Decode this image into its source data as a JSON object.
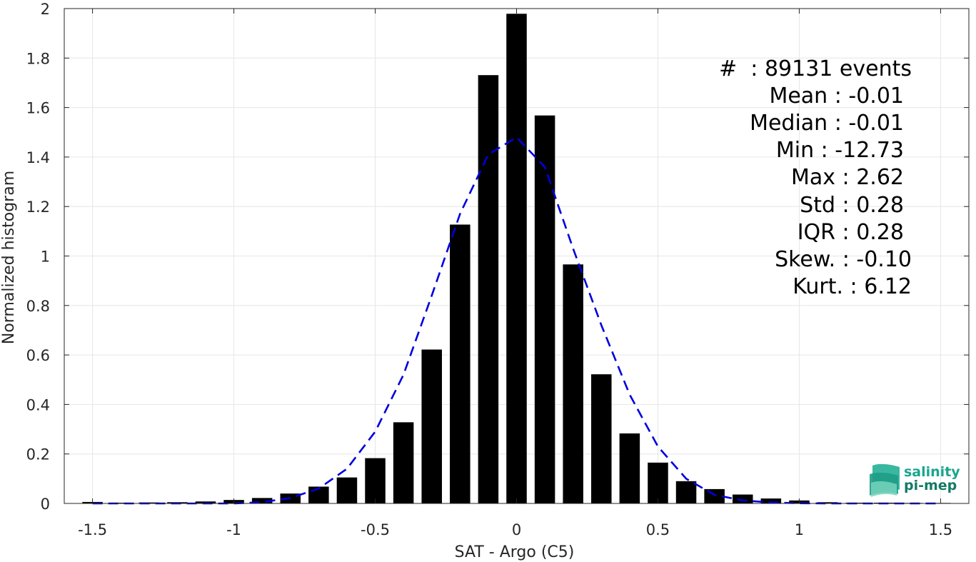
{
  "chart_data": {
    "type": "bar",
    "xlabel": "SAT - Argo (C5)",
    "ylabel": "Normalized histogram",
    "xlim": [
      -1.6,
      1.6
    ],
    "ylim": [
      0,
      2
    ],
    "grid": true,
    "xticks": [
      -1.5,
      -1,
      -0.5,
      0,
      0.5,
      1,
      1.5
    ],
    "xtick_labels": [
      "-1.5",
      "-1",
      "-0.5",
      "0",
      "0.5",
      "1",
      "1.5"
    ],
    "yticks": [
      0,
      0.2,
      0.4,
      0.6,
      0.8,
      1,
      1.2,
      1.4,
      1.6,
      1.8,
      2
    ],
    "ytick_labels": [
      "0",
      "0.2",
      "0.4",
      "0.6",
      "0.8",
      "1",
      "1.2",
      "1.4",
      "1.6",
      "1.8",
      "2"
    ],
    "bin_centers": [
      -1.5,
      -1.4,
      -1.3,
      -1.2,
      -1.1,
      -1.0,
      -0.9,
      -0.8,
      -0.7,
      -0.6,
      -0.5,
      -0.4,
      -0.3,
      -0.2,
      -0.1,
      0.0,
      0.1,
      0.2,
      0.3,
      0.4,
      0.5,
      0.6,
      0.7,
      0.8,
      0.9,
      1.0,
      1.1,
      1.2,
      1.3,
      1.4,
      1.5
    ],
    "values": [
      0.006,
      0.003,
      0.004,
      0.005,
      0.008,
      0.014,
      0.022,
      0.04,
      0.068,
      0.105,
      0.183,
      0.328,
      0.622,
      1.127,
      1.731,
      1.979,
      1.568,
      0.966,
      0.522,
      0.283,
      0.165,
      0.09,
      0.058,
      0.036,
      0.02,
      0.012,
      0.005,
      0.003,
      0.003,
      0.002,
      0.002
    ],
    "bar_color": "#000000",
    "fit_curve": {
      "style": "dashed",
      "color": "#0000dd",
      "x": [
        -1.5,
        -1.4,
        -1.3,
        -1.2,
        -1.1,
        -1.0,
        -0.9,
        -0.8,
        -0.7,
        -0.6,
        -0.5,
        -0.4,
        -0.3,
        -0.2,
        -0.1,
        0.0,
        0.1,
        0.2,
        0.3,
        0.4,
        0.5,
        0.6,
        0.7,
        0.8,
        0.9,
        1.0,
        1.1,
        1.2,
        1.3,
        1.4,
        1.5
      ],
      "y": [
        0.0,
        0.0,
        0.0,
        0.0,
        0.0,
        0.0,
        0.005,
        0.022,
        0.06,
        0.14,
        0.29,
        0.52,
        0.84,
        1.17,
        1.41,
        1.48,
        1.36,
        1.03,
        0.72,
        0.44,
        0.23,
        0.1,
        0.035,
        0.012,
        0.004,
        0.001,
        0.0,
        0.0,
        0.0,
        0.0,
        0.0
      ]
    },
    "annotations": [
      "#  : 89131 events",
      "Mean : -0.01",
      "Median : -0.01",
      "Min : -12.73",
      "Max : 2.62",
      "Std : 0.28",
      "IQR : 0.28",
      "Skew. : -0.10",
      "Kurt. : 6.12"
    ]
  },
  "logo": {
    "line1": "salinity",
    "line2": "pi-mep",
    "color1": "#1aa58e",
    "color2": "#137a66"
  }
}
